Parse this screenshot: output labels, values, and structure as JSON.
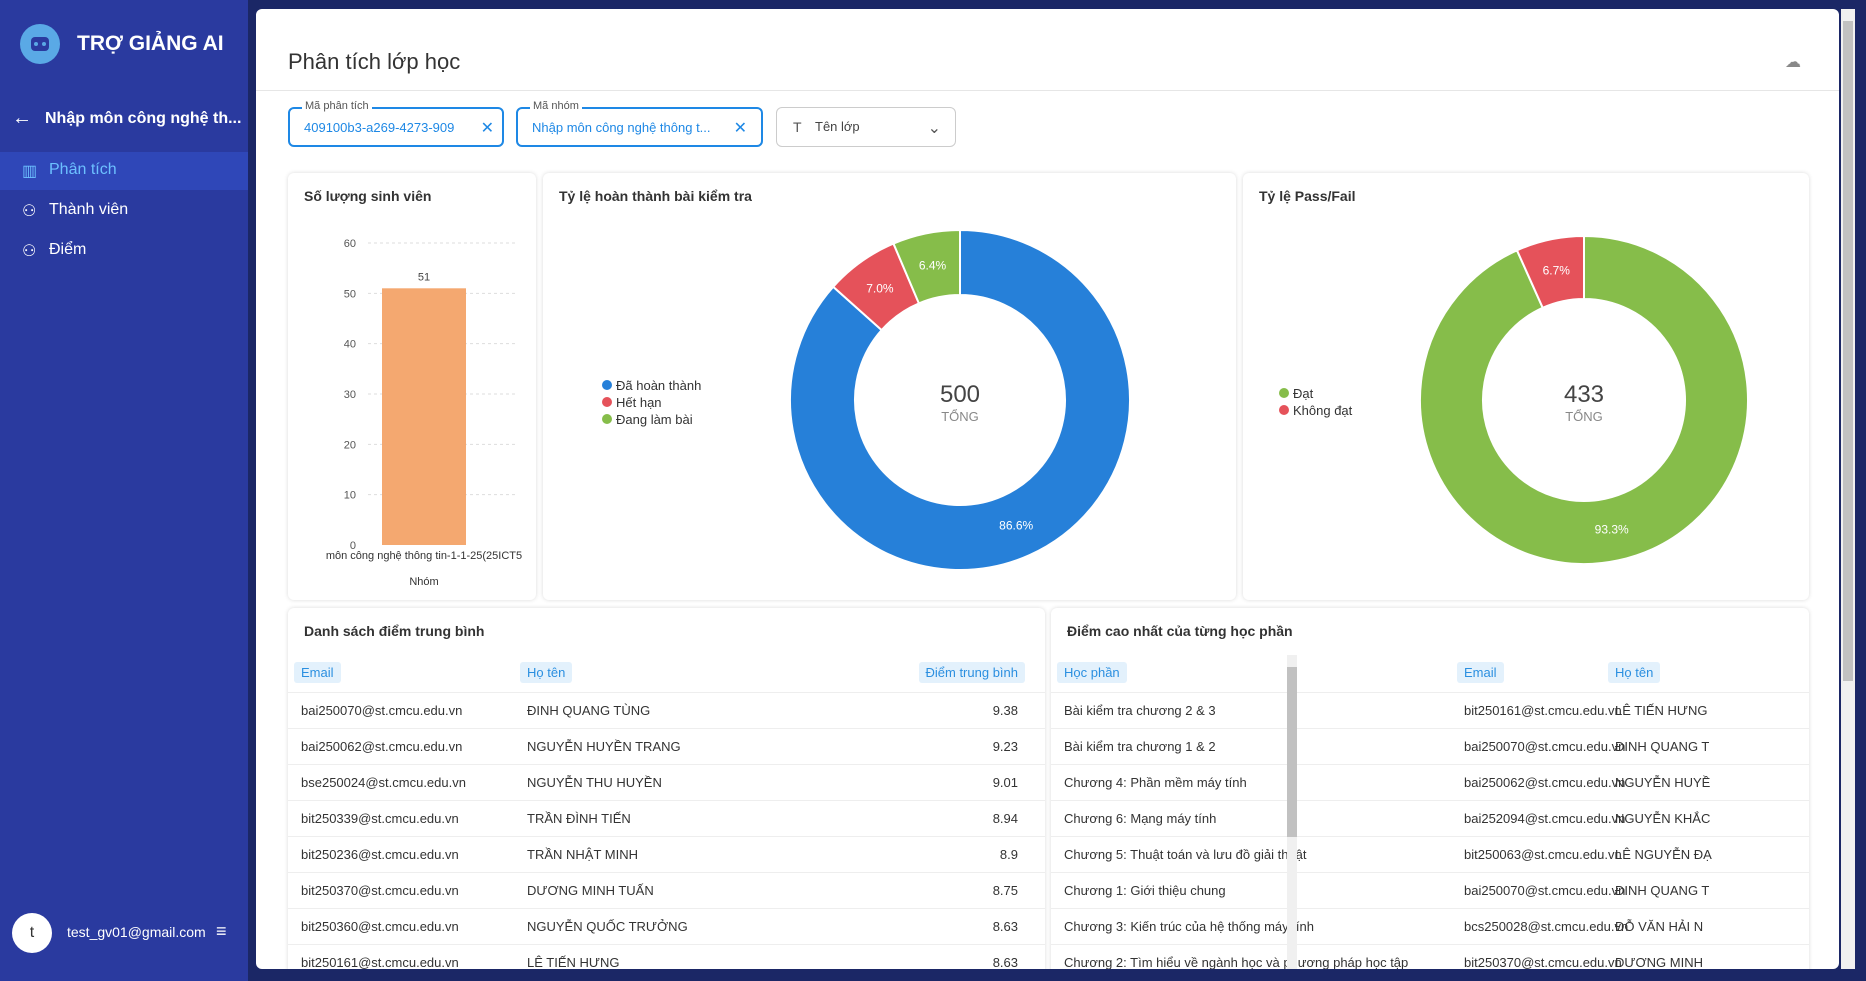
{
  "sidebar": {
    "brand": "TRỢ GIẢNG AI",
    "course": "Nhập môn công nghệ th...",
    "nav": [
      "Phân tích",
      "Thành viên",
      "Điểm"
    ],
    "user_initial": "t",
    "user_email": "test_gv01@gmail.com"
  },
  "header": {
    "title": "Phân tích lớp học"
  },
  "filters": [
    {
      "label": "Mã phân tích",
      "value": "409100b3-a269-4273-909"
    },
    {
      "label": "Mã nhóm",
      "value": "Nhập môn công nghệ thông t..."
    },
    {
      "placeholder": "Tên lớp"
    }
  ],
  "chart_data": [
    {
      "type": "bar",
      "title": "Số lượng sinh viên",
      "categories": [
        "môn công nghệ thông tin-1-1-25(25ICT5"
      ],
      "values": [
        51
      ],
      "color": "#f4a870",
      "ylim": [
        0,
        60
      ],
      "yticks": [
        0,
        10,
        20,
        30,
        40,
        50,
        60
      ],
      "xlabel": "Nhóm",
      "grid": true
    },
    {
      "type": "pie",
      "title": "Tỷ lệ hoàn thành bài kiểm tra",
      "categories": [
        "Đã hoàn thành",
        "Hết hạn",
        "Đang làm bài"
      ],
      "values": [
        86.6,
        7.0,
        6.4
      ],
      "value_labels": [
        "86.6%",
        "7.0%",
        "6.4%"
      ],
      "colors": [
        "#2680d9",
        "#e5525a",
        "#86bd4a"
      ],
      "total": 500,
      "total_label": "TỔNG"
    },
    {
      "type": "pie",
      "title": "Tỷ lệ Pass/Fail",
      "categories": [
        "Đạt",
        "Không đạt"
      ],
      "values": [
        93.3,
        6.7
      ],
      "value_labels": [
        "93.3%",
        "6.7%"
      ],
      "colors": [
        "#86bd4a",
        "#e5525a"
      ],
      "total": 433,
      "total_label": "TỔNG"
    }
  ],
  "average_table": {
    "title": "Danh sách điểm trung bình",
    "columns": [
      "Email",
      "Họ tên",
      "Điểm trung bình"
    ],
    "rows": [
      [
        "bai250070@st.cmcu.edu.vn",
        "ĐINH QUANG TÙNG",
        "9.38"
      ],
      [
        "bai250062@st.cmcu.edu.vn",
        "NGUYỄN HUYỀN TRANG",
        "9.23"
      ],
      [
        "bse250024@st.cmcu.edu.vn",
        "NGUYỄN THU HUYỀN",
        "9.01"
      ],
      [
        "bit250339@st.cmcu.edu.vn",
        "TRẦN ĐÌNH TIẾN",
        "8.94"
      ],
      [
        "bit250236@st.cmcu.edu.vn",
        "TRẦN NHẬT MINH",
        "8.9"
      ],
      [
        "bit250370@st.cmcu.edu.vn",
        "DƯƠNG MINH TUẤN",
        "8.75"
      ],
      [
        "bit250360@st.cmcu.edu.vn",
        "NGUYỄN QUỐC TRƯỞNG",
        "8.63"
      ],
      [
        "bit250161@st.cmcu.edu.vn",
        "LÊ TIẾN HƯNG",
        "8.63"
      ]
    ]
  },
  "top_table": {
    "title": "Điểm cao nhất của từng học phần",
    "columns": [
      "Học phần",
      "Email",
      "Họ tên"
    ],
    "rows": [
      [
        "Bài kiểm tra chương 2 & 3",
        "bit250161@st.cmcu.edu.vn",
        "LÊ TIẾN HƯNG"
      ],
      [
        "Bài kiểm tra chương 1 & 2",
        "bai250070@st.cmcu.edu.vn",
        "ĐINH QUANG T"
      ],
      [
        "Chương 4: Phần mềm máy tính",
        "bai250062@st.cmcu.edu.vn",
        "NGUYỄN HUYỀ"
      ],
      [
        "Chương 6: Mạng máy tính",
        "bai252094@st.cmcu.edu.vn",
        "NGUYỄN KHẮC"
      ],
      [
        "Chương 5: Thuật toán và lưu đồ giải thuật",
        "bit250063@st.cmcu.edu.vn",
        "LÊ NGUYỄN ĐẠ"
      ],
      [
        "Chương 1: Giới thiệu chung",
        "bai250070@st.cmcu.edu.vn",
        "ĐINH QUANG T"
      ],
      [
        "Chương 3: Kiến trúc của hệ thống máy tính",
        "bcs250028@st.cmcu.edu.vn",
        "ĐỖ VĂN HẢI N"
      ],
      [
        "Chương 2: Tìm hiểu về ngành học và phương pháp học tập",
        "bit250370@st.cmcu.edu.vn",
        "DƯƠNG MINH"
      ]
    ]
  }
}
